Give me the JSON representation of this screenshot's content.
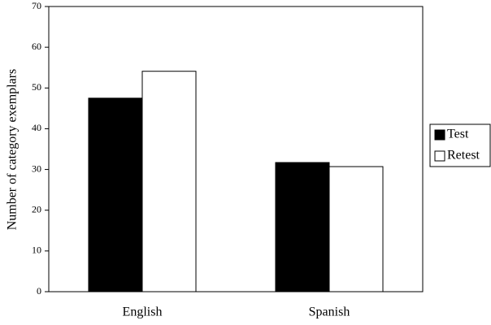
{
  "chart_data": {
    "type": "bar",
    "y_label": "Number of category exemplars",
    "categories": [
      "English",
      "Spanish"
    ],
    "series": [
      {
        "name": "Test",
        "color": "#000000",
        "values": [
          47.5,
          31.7
        ]
      },
      {
        "name": "Retest",
        "color": "#ffffff",
        "values": [
          54.1,
          30.7
        ]
      }
    ],
    "ylim": [
      0,
      70
    ],
    "yticks": [
      0,
      10,
      20,
      30,
      40,
      50,
      60,
      70
    ],
    "grid": false,
    "legend": "right"
  }
}
